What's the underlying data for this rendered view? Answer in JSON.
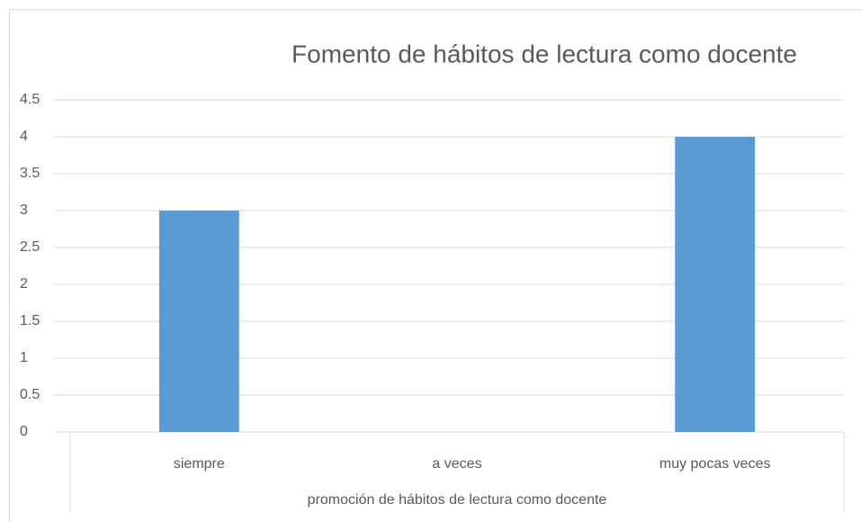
{
  "chart_data": {
    "type": "bar",
    "title": "Fomento de hábitos de lectura como docente",
    "x_label": "promoción de hábitos de lectura como docente",
    "categories": [
      "siempre",
      "a veces",
      "muy pocas veces"
    ],
    "values": [
      3,
      0,
      4
    ],
    "color": "#5b9bd5",
    "ylim": [
      0,
      4.5
    ],
    "yticks": [
      0,
      0.5,
      1,
      1.5,
      2,
      2.5,
      3,
      3.5,
      4,
      4.5
    ],
    "grid": true
  }
}
